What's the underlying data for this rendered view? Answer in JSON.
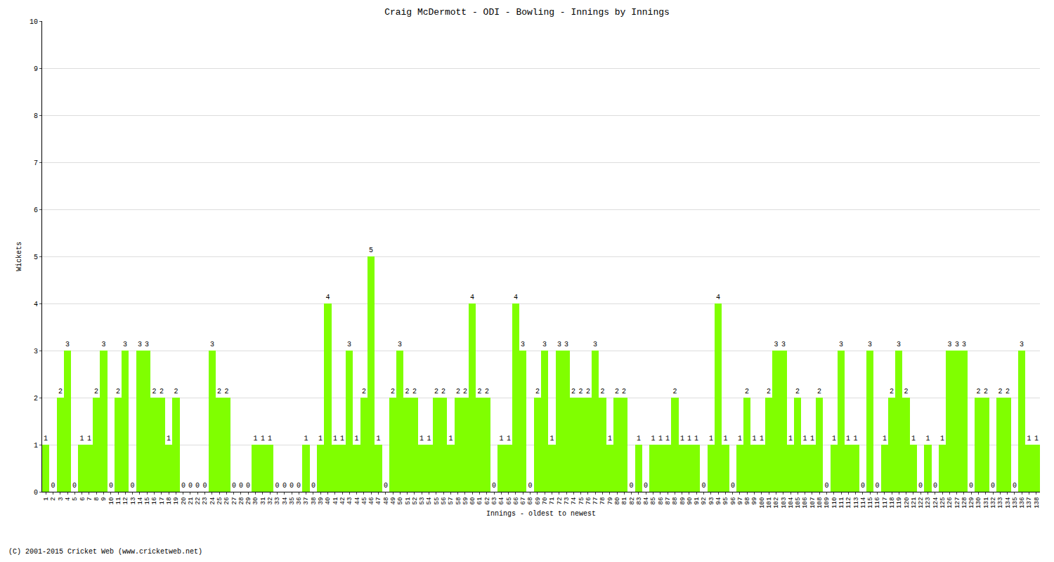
{
  "chart_data": {
    "type": "bar",
    "title": "Craig McDermott - ODI - Bowling - Innings by Innings",
    "x_label": "Innings - oldest to newest",
    "y_label": "Wickets",
    "annotations": [
      "(C) 2001-2015 Cricket Web (www.cricketweb.net)"
    ],
    "categories": [
      "1",
      "2",
      "3",
      "4",
      "5",
      "6",
      "7",
      "8",
      "9",
      "10",
      "11",
      "12",
      "13",
      "14",
      "15",
      "16",
      "17",
      "18",
      "19",
      "20",
      "21",
      "22",
      "23",
      "24",
      "25",
      "26",
      "27",
      "28",
      "29",
      "30",
      "31",
      "32",
      "33",
      "34",
      "35",
      "36",
      "37",
      "38",
      "39",
      "40",
      "41",
      "42",
      "43",
      "44",
      "45",
      "46",
      "47",
      "48",
      "49",
      "50",
      "51",
      "52",
      "53",
      "54",
      "55",
      "56",
      "57",
      "58",
      "59",
      "60",
      "61",
      "62",
      "63",
      "64",
      "65",
      "66",
      "67",
      "68",
      "69",
      "70",
      "71",
      "72",
      "73",
      "74",
      "75",
      "76",
      "77",
      "78",
      "79",
      "80",
      "81",
      "82",
      "83",
      "84",
      "85",
      "86",
      "87",
      "88",
      "89",
      "90",
      "91",
      "92",
      "93",
      "94",
      "95",
      "96",
      "97",
      "98",
      "99",
      "100",
      "101",
      "102",
      "103",
      "104",
      "105",
      "106",
      "107",
      "108",
      "109",
      "110",
      "111",
      "112",
      "113",
      "114",
      "115",
      "116",
      "117",
      "118",
      "119",
      "120",
      "121",
      "122",
      "123",
      "124",
      "125",
      "126",
      "127",
      "128",
      "129",
      "130",
      "131",
      "132",
      "133",
      "134",
      "135",
      "136",
      "137",
      "138"
    ],
    "values": [
      1,
      0,
      2,
      3,
      0,
      1,
      1,
      2,
      3,
      0,
      2,
      3,
      0,
      3,
      3,
      2,
      2,
      1,
      2,
      0,
      0,
      0,
      0,
      3,
      2,
      2,
      0,
      0,
      0,
      1,
      1,
      1,
      0,
      0,
      0,
      0,
      1,
      0,
      1,
      4,
      1,
      1,
      3,
      1,
      2,
      5,
      1,
      0,
      2,
      3,
      2,
      2,
      1,
      1,
      2,
      2,
      1,
      2,
      2,
      4,
      2,
      2,
      0,
      1,
      1,
      4,
      3,
      0,
      2,
      3,
      1,
      3,
      3,
      2,
      2,
      2,
      3,
      2,
      1,
      2,
      2,
      0,
      1,
      0,
      1,
      1,
      1,
      2,
      1,
      1,
      1,
      0,
      1,
      4,
      1,
      0,
      1,
      2,
      1,
      1,
      2,
      3,
      3,
      1,
      2,
      1,
      1,
      2,
      0,
      1,
      3,
      1,
      1,
      0,
      3,
      0,
      1,
      2,
      3,
      2,
      1,
      0,
      1,
      0,
      1,
      3,
      3,
      3,
      0,
      2,
      2,
      0,
      2,
      2,
      0,
      3,
      1,
      1
    ],
    "color": "#80ff00",
    "ylim": [
      0,
      10
    ],
    "yticks": [
      0,
      1,
      2,
      3,
      4,
      5,
      6,
      7,
      8,
      9,
      10
    ],
    "grid": true,
    "data_labels": true
  }
}
